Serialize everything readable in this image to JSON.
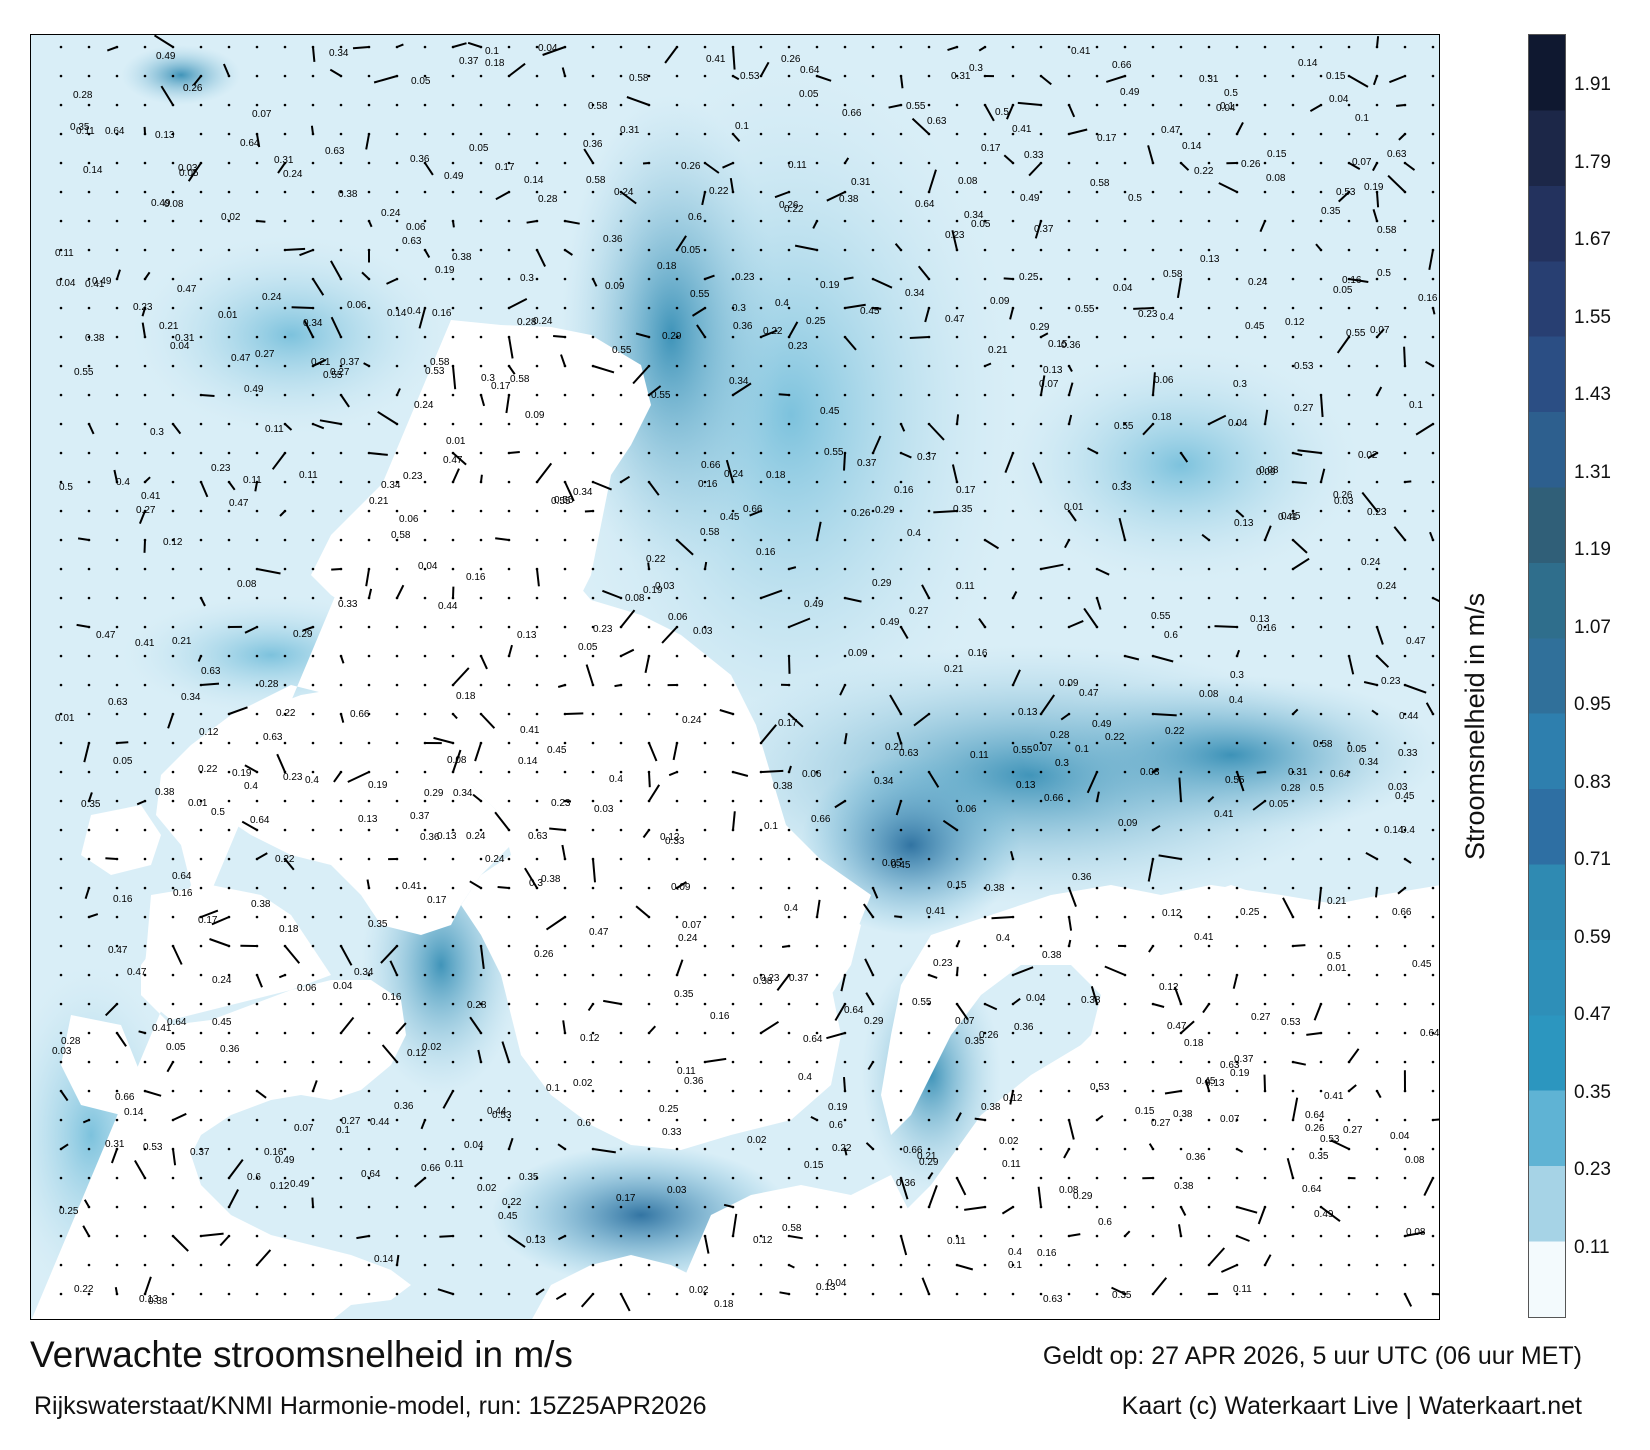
{
  "title": "Verwachte stroomsnelheid in m/s",
  "subtitle": "Rijkswaterstaat/KNMI Harmonie-model, run: 15Z25APR2026",
  "valid_time": "Geldt op: 27 APR 2026, 5 uur UTC (06 uur MET)",
  "credit": "Kaart (c) Waterkaart Live | Waterkaart.net",
  "legend": {
    "title": "Stroomsnelheid in m/s",
    "ticks": [
      "1.91",
      "1.79",
      "1.67",
      "1.55",
      "1.43",
      "1.31",
      "1.19",
      "1.07",
      "0.95",
      "0.83",
      "0.71",
      "0.59",
      "0.47",
      "0.35",
      "0.23",
      "0.11"
    ],
    "colors": [
      "#0f1830",
      "#1c2748",
      "#23325e",
      "#283f72",
      "#2b4e84",
      "#2d5f8e",
      "#305f78",
      "#2f6e8c",
      "#30709a",
      "#2e7fae",
      "#2e6fa3",
      "#2f8ab2",
      "#2e8fb8",
      "#2c96bf",
      "#5fb3d4",
      "#a6d3e6",
      "#f3fafd"
    ]
  },
  "sample_labels": [
    {
      "text": "0.09"
    },
    {
      "text": "0.08"
    },
    {
      "text": "0.04"
    },
    {
      "text": "0.1"
    },
    {
      "text": "0.01"
    },
    {
      "text": "0.19"
    },
    {
      "text": "0.11"
    },
    {
      "text": "0.07"
    },
    {
      "text": "0.03"
    },
    {
      "text": "0.16"
    },
    {
      "text": "0.22"
    },
    {
      "text": "0.18"
    },
    {
      "text": "0.14"
    },
    {
      "text": "0.29"
    },
    {
      "text": "0.24"
    },
    {
      "text": "0.33"
    },
    {
      "text": "0.36"
    },
    {
      "text": "0.41"
    },
    {
      "text": "0.45"
    },
    {
      "text": "0.49"
    },
    {
      "text": "0.53"
    },
    {
      "text": "0.64"
    },
    {
      "text": "0.66"
    },
    {
      "text": "0.55"
    },
    {
      "text": "0.31"
    },
    {
      "text": "0.27"
    },
    {
      "text": "0.35"
    },
    {
      "text": "0.34"
    },
    {
      "text": "0.3"
    },
    {
      "text": "0.26"
    },
    {
      "text": "0.38"
    },
    {
      "text": "0.28"
    },
    {
      "text": "0.23"
    },
    {
      "text": "0.21"
    },
    {
      "text": "0.15"
    },
    {
      "text": "0.12"
    },
    {
      "text": "0.06"
    },
    {
      "text": "0.05"
    },
    {
      "text": "0.02"
    },
    {
      "text": "0.17"
    },
    {
      "text": "0.44"
    },
    {
      "text": "0.47"
    },
    {
      "text": "0.58"
    },
    {
      "text": "0.6"
    },
    {
      "text": "0.63"
    },
    {
      "text": "0.4"
    },
    {
      "text": "0.5"
    },
    {
      "text": "0.37"
    },
    {
      "text": "0.25"
    },
    {
      "text": "0.13"
    }
  ]
}
